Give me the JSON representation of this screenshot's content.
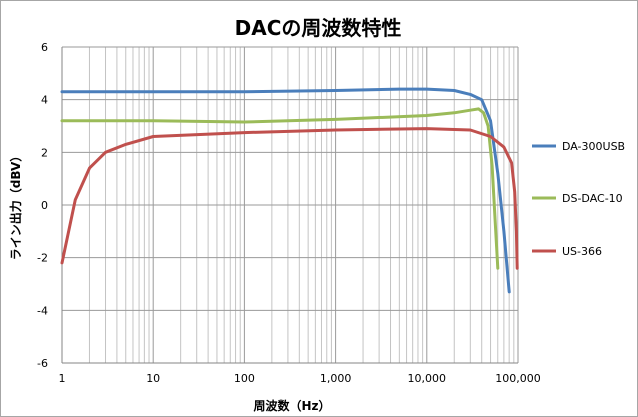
{
  "chart_data": {
    "type": "line",
    "title": "DACの周波数特性",
    "xlabel": "周波数（Hz）",
    "ylabel": "ライン出力（dBV）",
    "xscale": "log",
    "xlim": [
      1,
      100000
    ],
    "ylim": [
      -6,
      6
    ],
    "grid": true,
    "legend_position": "right",
    "x_tick_labels": [
      "1",
      "10",
      "100",
      "1,000",
      "10,000",
      "100,000"
    ],
    "y_tick_labels": [
      "6",
      "4",
      "2",
      "0",
      "-2",
      "-4",
      "-6"
    ],
    "series": [
      {
        "name": "DA-300USB",
        "color": "#4a7ebb",
        "x": [
          1,
          10,
          100,
          1000,
          5000,
          10000,
          20000,
          30000,
          40000,
          50000,
          60000,
          70000,
          80000
        ],
        "y": [
          4.3,
          4.3,
          4.3,
          4.35,
          4.4,
          4.4,
          4.35,
          4.2,
          4.0,
          3.2,
          1.2,
          -1.0,
          -3.3
        ]
      },
      {
        "name": "DS-DAC-10",
        "color": "#9bbb59",
        "x": [
          1,
          10,
          100,
          1000,
          10000,
          20000,
          30000,
          37000,
          42000,
          47000,
          52000,
          56000,
          60000
        ],
        "y": [
          3.2,
          3.2,
          3.15,
          3.25,
          3.4,
          3.5,
          3.6,
          3.65,
          3.5,
          3.0,
          1.5,
          -0.5,
          -2.4
        ]
      },
      {
        "name": "US-366",
        "color": "#c0504d",
        "x": [
          1,
          1.4,
          2,
          3,
          5,
          10,
          100,
          1000,
          10000,
          30000,
          50000,
          70000,
          85000,
          92000,
          96000,
          98000
        ],
        "y": [
          -2.2,
          0.2,
          1.4,
          2.0,
          2.3,
          2.6,
          2.75,
          2.85,
          2.9,
          2.85,
          2.6,
          2.2,
          1.6,
          0.5,
          -1.0,
          -2.4
        ]
      }
    ]
  }
}
